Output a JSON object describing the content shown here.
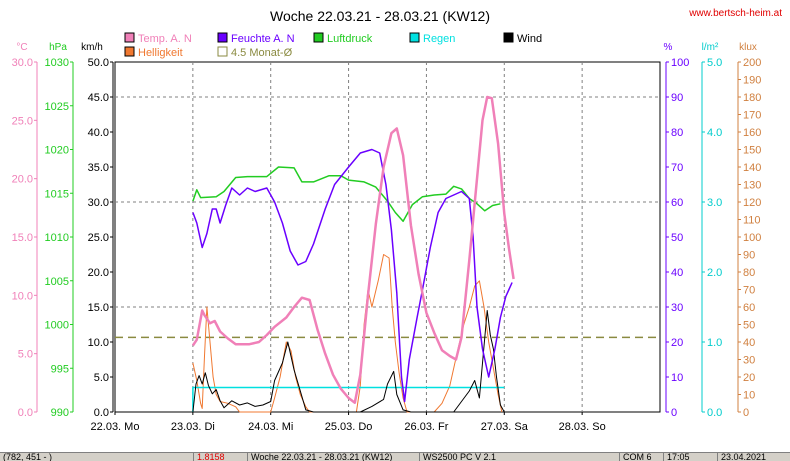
{
  "title": "Woche 22.03.21 - 28.03.21 (KW12)",
  "website": "www.bertsch-heim.at",
  "legend": [
    {
      "label": "Temp. A. N",
      "color": "#f080b8",
      "filled": true
    },
    {
      "label": "Feuchte A. N",
      "color": "#6a00ff",
      "filled": true
    },
    {
      "label": "Luftdruck",
      "color": "#22cc22",
      "filled": true
    },
    {
      "label": "Regen",
      "color": "#00e0e0",
      "filled": true
    },
    {
      "label": "Wind",
      "color": "#000000",
      "filled": true
    },
    {
      "label": "Helligkeit",
      "color": "#f07830",
      "filled": true
    },
    {
      "label": "4.5 Monat-Ø",
      "color": "#8a8a40",
      "filled": false
    }
  ],
  "units": {
    "temp": "°C",
    "pressure": "hPa",
    "wind": "km/h",
    "humidity": "%",
    "rain": "l/m²",
    "lux": "klux"
  },
  "status_bar": [
    "(782, 451 - )",
    "1.8158",
    "Woche 22.03.21 - 28.03.21 (KW12)",
    "WS2500 PC V 2.1",
    "COM 6",
    "17:05",
    "23.04.2021"
  ],
  "chart_data": {
    "type": "line",
    "x_labels": [
      "22.03. Mo",
      "23.03. Di",
      "24.03. Mi",
      "25.03. Do",
      "26.03. Fr",
      "27.03. Sa",
      "28.03. So"
    ],
    "x_range_days": [
      0,
      7
    ],
    "axes": {
      "temp": {
        "ticks": [
          "0.0",
          "5.0",
          "10.0",
          "15.0",
          "20.0",
          "25.0",
          "30.0"
        ],
        "range": [
          0,
          30
        ],
        "color": "#f080b8"
      },
      "pressure": {
        "ticks": [
          "990",
          "995",
          "1000",
          "1005",
          "1010",
          "1015",
          "1020",
          "1025",
          "1030"
        ],
        "range": [
          990,
          1030
        ],
        "color": "#22cc22"
      },
      "wind": {
        "ticks": [
          "0.0",
          "5.0",
          "10.0",
          "15.0",
          "20.0",
          "25.0",
          "30.0",
          "35.0",
          "40.0",
          "45.0",
          "50.0"
        ],
        "range": [
          0,
          50
        ],
        "color": "#000000"
      },
      "humidity": {
        "ticks": [
          "0",
          "10",
          "20",
          "30",
          "40",
          "50",
          "60",
          "70",
          "80",
          "90",
          "100"
        ],
        "range": [
          0,
          100
        ],
        "color": "#6a00ff"
      },
      "rain": {
        "ticks": [
          "0.0",
          "1.0",
          "2.0",
          "3.0",
          "4.0",
          "5.0"
        ],
        "range": [
          0,
          5
        ],
        "color": "#00cccc"
      },
      "lux": {
        "ticks": [
          "0",
          "10",
          "20",
          "30",
          "40",
          "50",
          "60",
          "70",
          "80",
          "90",
          "100",
          "110",
          "120",
          "130",
          "140",
          "150",
          "160",
          "170",
          "180",
          "190",
          "200"
        ],
        "range": [
          0,
          200
        ],
        "color": "#d08040"
      }
    },
    "series": [
      {
        "name": "Luftdruck",
        "axis": "pressure",
        "color": "#22cc22",
        "points": [
          [
            1.0,
            1014.1
          ],
          [
            1.05,
            1015.4
          ],
          [
            1.1,
            1014.5
          ],
          [
            1.3,
            1014.6
          ],
          [
            1.4,
            1015.2
          ],
          [
            1.55,
            1016.8
          ],
          [
            1.7,
            1016.9
          ],
          [
            1.95,
            1016.9
          ],
          [
            2.1,
            1018.0
          ],
          [
            2.3,
            1017.9
          ],
          [
            2.4,
            1016.3
          ],
          [
            2.55,
            1016.3
          ],
          [
            2.75,
            1017.0
          ],
          [
            2.9,
            1017.0
          ],
          [
            3.0,
            1016.5
          ],
          [
            3.2,
            1016.3
          ],
          [
            3.35,
            1015.7
          ],
          [
            3.5,
            1014.1
          ],
          [
            3.6,
            1012.8
          ],
          [
            3.7,
            1011.8
          ],
          [
            3.82,
            1013.7
          ],
          [
            3.95,
            1014.6
          ],
          [
            4.1,
            1014.8
          ],
          [
            4.25,
            1014.9
          ],
          [
            4.35,
            1015.8
          ],
          [
            4.45,
            1015.5
          ],
          [
            4.55,
            1014.4
          ],
          [
            4.65,
            1013.8
          ],
          [
            4.75,
            1013.0
          ],
          [
            4.85,
            1013.6
          ],
          [
            4.95,
            1013.8
          ]
        ]
      },
      {
        "name": "Temp. A. N",
        "axis": "temp",
        "color": "#f080b8",
        "points": [
          [
            1.0,
            5.7
          ],
          [
            1.05,
            6.2
          ],
          [
            1.12,
            8.7
          ],
          [
            1.15,
            8.3
          ],
          [
            1.22,
            7.6
          ],
          [
            1.28,
            7.8
          ],
          [
            1.35,
            6.9
          ],
          [
            1.45,
            6.3
          ],
          [
            1.55,
            5.8
          ],
          [
            1.72,
            5.8
          ],
          [
            1.85,
            6.0
          ],
          [
            1.95,
            6.6
          ],
          [
            2.05,
            7.3
          ],
          [
            2.2,
            8.1
          ],
          [
            2.3,
            9.0
          ],
          [
            2.4,
            9.8
          ],
          [
            2.5,
            9.6
          ],
          [
            2.6,
            7.1
          ],
          [
            2.7,
            5.0
          ],
          [
            2.8,
            3.2
          ],
          [
            2.9,
            2.0
          ],
          [
            3.0,
            1.2
          ],
          [
            3.08,
            0.8
          ],
          [
            3.15,
            3.2
          ],
          [
            3.25,
            10.0
          ],
          [
            3.35,
            16.1
          ],
          [
            3.45,
            21.0
          ],
          [
            3.55,
            23.9
          ],
          [
            3.62,
            24.3
          ],
          [
            3.7,
            22.0
          ],
          [
            3.8,
            16.0
          ],
          [
            3.9,
            11.8
          ],
          [
            4.0,
            8.5
          ],
          [
            4.1,
            6.8
          ],
          [
            4.2,
            5.3
          ],
          [
            4.3,
            4.8
          ],
          [
            4.38,
            4.5
          ],
          [
            4.45,
            6.4
          ],
          [
            4.55,
            13.0
          ],
          [
            4.65,
            20.0
          ],
          [
            4.72,
            25.0
          ],
          [
            4.78,
            27.0
          ],
          [
            4.84,
            26.9
          ],
          [
            4.92,
            23.0
          ],
          [
            5.0,
            17.0
          ],
          [
            5.06,
            14.0
          ],
          [
            5.12,
            11.4
          ]
        ]
      },
      {
        "name": "Feuchte A. N",
        "axis": "humidity",
        "color": "#6a00ff",
        "points": [
          [
            1.0,
            57
          ],
          [
            1.05,
            54
          ],
          [
            1.12,
            47
          ],
          [
            1.18,
            51
          ],
          [
            1.25,
            58
          ],
          [
            1.3,
            58
          ],
          [
            1.35,
            54
          ],
          [
            1.42,
            59
          ],
          [
            1.5,
            64
          ],
          [
            1.6,
            62
          ],
          [
            1.7,
            64
          ],
          [
            1.8,
            63
          ],
          [
            1.95,
            64
          ],
          [
            2.05,
            60
          ],
          [
            2.15,
            54
          ],
          [
            2.25,
            46
          ],
          [
            2.35,
            42
          ],
          [
            2.45,
            43
          ],
          [
            2.55,
            48
          ],
          [
            2.7,
            58
          ],
          [
            2.82,
            65
          ],
          [
            3.0,
            70
          ],
          [
            3.15,
            74
          ],
          [
            3.3,
            75
          ],
          [
            3.4,
            74
          ],
          [
            3.48,
            65
          ],
          [
            3.55,
            52
          ],
          [
            3.62,
            34
          ],
          [
            3.68,
            10
          ],
          [
            3.72,
            3
          ],
          [
            3.78,
            15
          ],
          [
            3.88,
            27
          ],
          [
            3.95,
            35
          ],
          [
            4.05,
            47
          ],
          [
            4.15,
            57
          ],
          [
            4.25,
            61
          ],
          [
            4.35,
            62
          ],
          [
            4.45,
            63
          ],
          [
            4.55,
            61
          ],
          [
            4.6,
            50
          ],
          [
            4.65,
            30
          ],
          [
            4.72,
            18
          ],
          [
            4.8,
            10
          ],
          [
            4.88,
            18
          ],
          [
            4.95,
            27
          ],
          [
            5.02,
            33
          ],
          [
            5.1,
            37
          ]
        ]
      },
      {
        "name": "Wind",
        "axis": "wind",
        "color": "#000000",
        "points": [
          [
            1.0,
            0.0
          ],
          [
            1.04,
            4.0
          ],
          [
            1.08,
            5.2
          ],
          [
            1.12,
            4.0
          ],
          [
            1.16,
            5.6
          ],
          [
            1.2,
            3.8
          ],
          [
            1.25,
            2.6
          ],
          [
            1.3,
            3.2
          ],
          [
            1.35,
            1.6
          ],
          [
            1.4,
            0.6
          ],
          [
            1.5,
            1.6
          ],
          [
            1.6,
            1.0
          ],
          [
            1.7,
            1.3
          ],
          [
            1.8,
            0.8
          ],
          [
            1.9,
            1.0
          ],
          [
            2.0,
            1.5
          ],
          [
            2.05,
            4.5
          ],
          [
            2.15,
            7.0
          ],
          [
            2.22,
            10.0
          ],
          [
            2.3,
            6.0
          ],
          [
            2.38,
            3.0
          ],
          [
            2.45,
            0.3
          ],
          [
            2.55,
            0.0
          ],
          [
            3.15,
            0.0
          ],
          [
            3.3,
            0.8
          ],
          [
            3.45,
            1.8
          ],
          [
            3.5,
            4.0
          ],
          [
            3.58,
            5.8
          ],
          [
            3.62,
            2.5
          ],
          [
            3.7,
            0.3
          ],
          [
            3.8,
            0.0
          ],
          [
            4.35,
            0.0
          ],
          [
            4.45,
            1.5
          ],
          [
            4.55,
            3.0
          ],
          [
            4.62,
            4.5
          ],
          [
            4.68,
            2.0
          ],
          [
            4.72,
            7.0
          ],
          [
            4.78,
            14.5
          ],
          [
            4.82,
            11.0
          ],
          [
            4.86,
            9.0
          ],
          [
            4.9,
            5.0
          ],
          [
            4.95,
            1.0
          ],
          [
            5.0,
            0.0
          ]
        ]
      },
      {
        "name": "Helligkeit",
        "axis": "lux",
        "color": "#f07830",
        "points": [
          [
            1.0,
            28
          ],
          [
            1.05,
            18
          ],
          [
            1.1,
            5
          ],
          [
            1.12,
            2
          ],
          [
            1.15,
            32
          ],
          [
            1.18,
            60
          ],
          [
            1.22,
            40
          ],
          [
            1.26,
            20
          ],
          [
            1.3,
            10
          ],
          [
            1.35,
            6
          ],
          [
            1.45,
            5
          ],
          [
            1.55,
            3
          ],
          [
            1.6,
            0
          ],
          [
            2.0,
            0
          ],
          [
            2.05,
            8
          ],
          [
            2.12,
            20
          ],
          [
            2.2,
            40
          ],
          [
            2.26,
            35
          ],
          [
            2.32,
            20
          ],
          [
            2.38,
            10
          ],
          [
            2.45,
            3
          ],
          [
            2.5,
            0
          ],
          [
            3.1,
            0
          ],
          [
            3.15,
            15
          ],
          [
            3.2,
            50
          ],
          [
            3.25,
            70
          ],
          [
            3.3,
            60
          ],
          [
            3.38,
            75
          ],
          [
            3.45,
            90
          ],
          [
            3.52,
            88
          ],
          [
            3.56,
            60
          ],
          [
            3.6,
            40
          ],
          [
            3.65,
            22
          ],
          [
            3.7,
            8
          ],
          [
            3.75,
            0
          ],
          [
            4.1,
            0
          ],
          [
            4.2,
            5
          ],
          [
            4.3,
            15
          ],
          [
            4.4,
            35
          ],
          [
            4.48,
            50
          ],
          [
            4.55,
            60
          ],
          [
            4.62,
            72
          ],
          [
            4.68,
            75
          ],
          [
            4.74,
            60
          ],
          [
            4.8,
            40
          ],
          [
            4.86,
            25
          ],
          [
            4.92,
            10
          ],
          [
            4.97,
            0
          ]
        ]
      },
      {
        "name": "Regen",
        "axis": "rain",
        "color": "#00e0e0",
        "points": [
          [
            1.0,
            0.0
          ],
          [
            1.0,
            0.35
          ],
          [
            5.0,
            0.35
          ]
        ]
      }
    ],
    "reference_line": {
      "name": "4.5 Monat-Ø",
      "axis": "temp",
      "value": 6.4,
      "color": "#8a8a40"
    }
  }
}
